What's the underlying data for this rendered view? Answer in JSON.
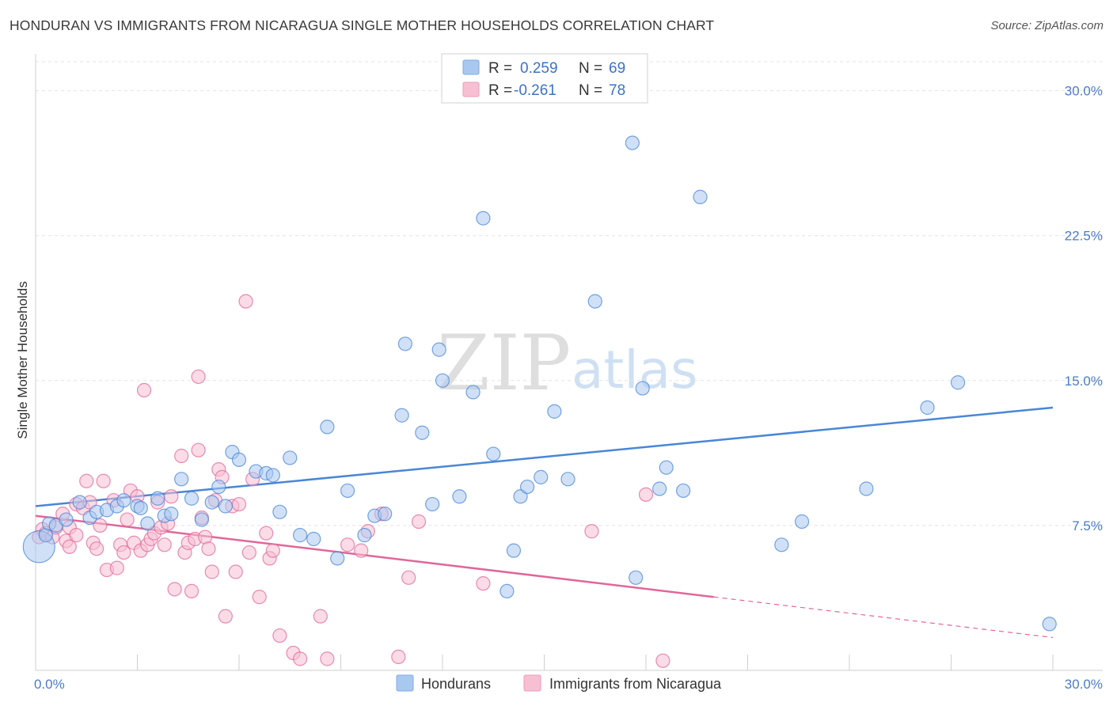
{
  "header": {
    "title": "HONDURAN VS IMMIGRANTS FROM NICARAGUA SINGLE MOTHER HOUSEHOLDS CORRELATION CHART",
    "source": "Source: ZipAtlas.com"
  },
  "watermark": {
    "zip": "ZIP",
    "atlas": "atlas"
  },
  "legend": {
    "rows": [
      {
        "r_label": "R =",
        "r_value": "0.259",
        "n_label": "N =",
        "n_value": "69",
        "color": "#a9c8f0"
      },
      {
        "r_label": "R =",
        "r_value": "-0.261",
        "n_label": "N =",
        "n_value": "78",
        "color": "#f7bfd2"
      }
    ]
  },
  "bottom_legend": {
    "items": [
      {
        "label": "Hondurans",
        "color": "#a9c8f0"
      },
      {
        "label": "Immigrants from Nicaragua",
        "color": "#f7bfd2"
      }
    ]
  },
  "chart_data": {
    "type": "scatter",
    "title": "HONDURAN VS IMMIGRANTS FROM NICARAGUA SINGLE MOTHER HOUSEHOLDS CORRELATION CHART",
    "ylabel": "Single Mother Households",
    "xlim": [
      0,
      30
    ],
    "ylim": [
      0,
      31.5
    ],
    "x_ticks": [
      {
        "value": 0,
        "label": "0.0%"
      },
      {
        "value": 30,
        "label": "30.0%"
      }
    ],
    "y_ticks": [
      {
        "value": 7.5,
        "label": "7.5%"
      },
      {
        "value": 15,
        "label": "15.0%"
      },
      {
        "value": 22.5,
        "label": "22.5%"
      },
      {
        "value": 30,
        "label": "30.0%"
      }
    ],
    "grid": "horizontal-dashed",
    "series": [
      {
        "name": "Hondurans",
        "color": "#4a86d6",
        "fill": "#a9c8f0",
        "trend": {
          "x": [
            0,
            30
          ],
          "y": [
            8.5,
            13.6
          ],
          "dashed_from": null
        },
        "points": [
          [
            0.1,
            6.4
          ],
          [
            0.3,
            7.0
          ],
          [
            0.4,
            7.6
          ],
          [
            0.6,
            7.5
          ],
          [
            0.9,
            7.8
          ],
          [
            1.3,
            8.7
          ],
          [
            1.6,
            7.9
          ],
          [
            1.8,
            8.2
          ],
          [
            2.1,
            8.3
          ],
          [
            2.4,
            8.5
          ],
          [
            2.6,
            8.8
          ],
          [
            3.0,
            8.5
          ],
          [
            3.1,
            8.4
          ],
          [
            3.3,
            7.6
          ],
          [
            3.6,
            8.9
          ],
          [
            3.8,
            8.0
          ],
          [
            4.0,
            8.1
          ],
          [
            4.3,
            9.9
          ],
          [
            4.6,
            8.9
          ],
          [
            4.9,
            7.8
          ],
          [
            5.2,
            8.7
          ],
          [
            5.4,
            9.5
          ],
          [
            5.6,
            8.5
          ],
          [
            5.8,
            11.3
          ],
          [
            6.0,
            10.9
          ],
          [
            6.5,
            10.3
          ],
          [
            6.8,
            10.2
          ],
          [
            7.0,
            10.1
          ],
          [
            7.2,
            8.2
          ],
          [
            7.5,
            11.0
          ],
          [
            7.8,
            7.0
          ],
          [
            8.2,
            6.8
          ],
          [
            8.6,
            12.6
          ],
          [
            8.9,
            5.8
          ],
          [
            9.2,
            9.3
          ],
          [
            9.7,
            7.0
          ],
          [
            10.0,
            8.0
          ],
          [
            10.3,
            8.1
          ],
          [
            10.8,
            13.2
          ],
          [
            10.9,
            16.9
          ],
          [
            11.4,
            12.3
          ],
          [
            11.7,
            8.6
          ],
          [
            11.9,
            16.6
          ],
          [
            12.0,
            15.0
          ],
          [
            12.5,
            9.0
          ],
          [
            12.9,
            14.4
          ],
          [
            13.2,
            23.4
          ],
          [
            13.5,
            11.2
          ],
          [
            13.9,
            4.1
          ],
          [
            14.1,
            6.2
          ],
          [
            14.3,
            9.0
          ],
          [
            14.5,
            9.5
          ],
          [
            14.9,
            10.0
          ],
          [
            15.3,
            13.4
          ],
          [
            15.7,
            9.9
          ],
          [
            16.5,
            19.1
          ],
          [
            17.6,
            27.3
          ],
          [
            17.7,
            4.8
          ],
          [
            17.9,
            14.6
          ],
          [
            18.4,
            9.4
          ],
          [
            18.6,
            10.5
          ],
          [
            19.1,
            9.3
          ],
          [
            19.6,
            24.5
          ],
          [
            22.0,
            6.5
          ],
          [
            22.6,
            7.7
          ],
          [
            24.5,
            9.4
          ],
          [
            26.3,
            13.6
          ],
          [
            27.2,
            14.9
          ],
          [
            29.9,
            2.4
          ]
        ]
      },
      {
        "name": "Immigrants from Nicaragua",
        "color": "#e0679a",
        "fill": "#f7bfd2",
        "trend": {
          "x": [
            0,
            30
          ],
          "y": [
            8.0,
            1.7
          ],
          "dashed_from": 20.0
        },
        "points": [
          [
            0.1,
            6.9
          ],
          [
            0.2,
            7.3
          ],
          [
            0.3,
            7.1
          ],
          [
            0.5,
            6.9
          ],
          [
            0.6,
            7.4
          ],
          [
            0.8,
            8.1
          ],
          [
            0.9,
            6.7
          ],
          [
            1.0,
            7.4
          ],
          [
            1.0,
            6.4
          ],
          [
            1.2,
            7.0
          ],
          [
            1.2,
            8.6
          ],
          [
            1.4,
            8.4
          ],
          [
            1.5,
            9.8
          ],
          [
            1.6,
            8.7
          ],
          [
            1.7,
            6.6
          ],
          [
            1.8,
            6.3
          ],
          [
            1.9,
            7.5
          ],
          [
            2.0,
            9.8
          ],
          [
            2.1,
            5.2
          ],
          [
            2.3,
            8.8
          ],
          [
            2.4,
            5.3
          ],
          [
            2.5,
            6.5
          ],
          [
            2.6,
            6.1
          ],
          [
            2.7,
            7.8
          ],
          [
            2.8,
            9.3
          ],
          [
            2.9,
            6.6
          ],
          [
            3.0,
            9.0
          ],
          [
            3.1,
            6.2
          ],
          [
            3.2,
            14.5
          ],
          [
            3.3,
            6.5
          ],
          [
            3.4,
            6.8
          ],
          [
            3.5,
            7.1
          ],
          [
            3.6,
            8.7
          ],
          [
            3.7,
            7.4
          ],
          [
            3.8,
            6.5
          ],
          [
            3.9,
            7.6
          ],
          [
            4.0,
            9.0
          ],
          [
            4.1,
            4.2
          ],
          [
            4.3,
            11.1
          ],
          [
            4.4,
            6.1
          ],
          [
            4.5,
            6.6
          ],
          [
            4.6,
            4.1
          ],
          [
            4.7,
            6.8
          ],
          [
            4.8,
            11.4
          ],
          [
            4.8,
            15.2
          ],
          [
            4.9,
            7.9
          ],
          [
            5.0,
            6.9
          ],
          [
            5.1,
            6.3
          ],
          [
            5.2,
            5.1
          ],
          [
            5.3,
            8.8
          ],
          [
            5.4,
            10.4
          ],
          [
            5.5,
            10.0
          ],
          [
            5.6,
            2.8
          ],
          [
            5.8,
            8.5
          ],
          [
            5.9,
            5.1
          ],
          [
            6.0,
            8.6
          ],
          [
            6.2,
            19.1
          ],
          [
            6.3,
            6.1
          ],
          [
            6.4,
            9.9
          ],
          [
            6.6,
            3.8
          ],
          [
            6.8,
            7.1
          ],
          [
            6.9,
            5.8
          ],
          [
            7.0,
            6.2
          ],
          [
            7.2,
            1.8
          ],
          [
            7.6,
            0.9
          ],
          [
            7.8,
            0.6
          ],
          [
            8.4,
            2.8
          ],
          [
            8.6,
            0.6
          ],
          [
            9.2,
            6.5
          ],
          [
            9.6,
            6.2
          ],
          [
            9.8,
            7.2
          ],
          [
            10.2,
            8.1
          ],
          [
            10.7,
            0.7
          ],
          [
            11.0,
            4.8
          ],
          [
            11.3,
            7.7
          ],
          [
            13.2,
            4.5
          ],
          [
            16.4,
            7.2
          ],
          [
            18.0,
            9.1
          ],
          [
            18.5,
            0.5
          ]
        ]
      }
    ]
  }
}
